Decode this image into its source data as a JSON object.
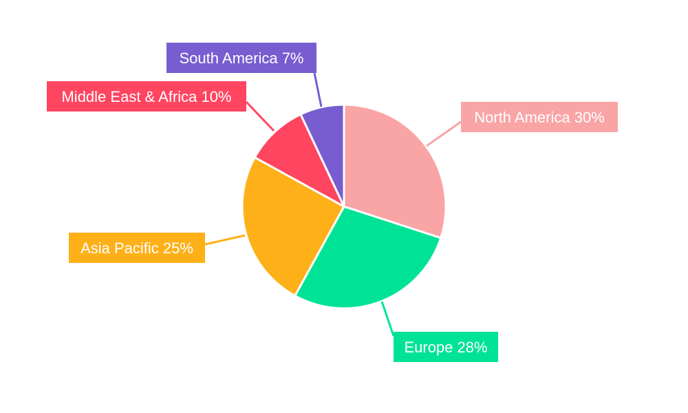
{
  "chart_data": {
    "type": "pie",
    "title": "",
    "start_angle_deg": 0,
    "direction": "clockwise",
    "slices": [
      {
        "label": "North America",
        "value": 30,
        "display": "North America 30%",
        "color": "#F9A4A5"
      },
      {
        "label": "Europe",
        "value": 28,
        "display": "Europe 28%",
        "color": "#00E396"
      },
      {
        "label": "Asia Pacific",
        "value": 25,
        "display": "Asia Pacific 25%",
        "color": "#FEB019"
      },
      {
        "label": "Middle East & Africa",
        "value": 10,
        "display": "Middle East & Africa 10%",
        "color": "#FF4560"
      },
      {
        "label": "South America",
        "value": 7,
        "display": "South America 7%",
        "color": "#775DD0"
      }
    ],
    "legend": "none",
    "labels": "outside-with-leader-lines"
  }
}
